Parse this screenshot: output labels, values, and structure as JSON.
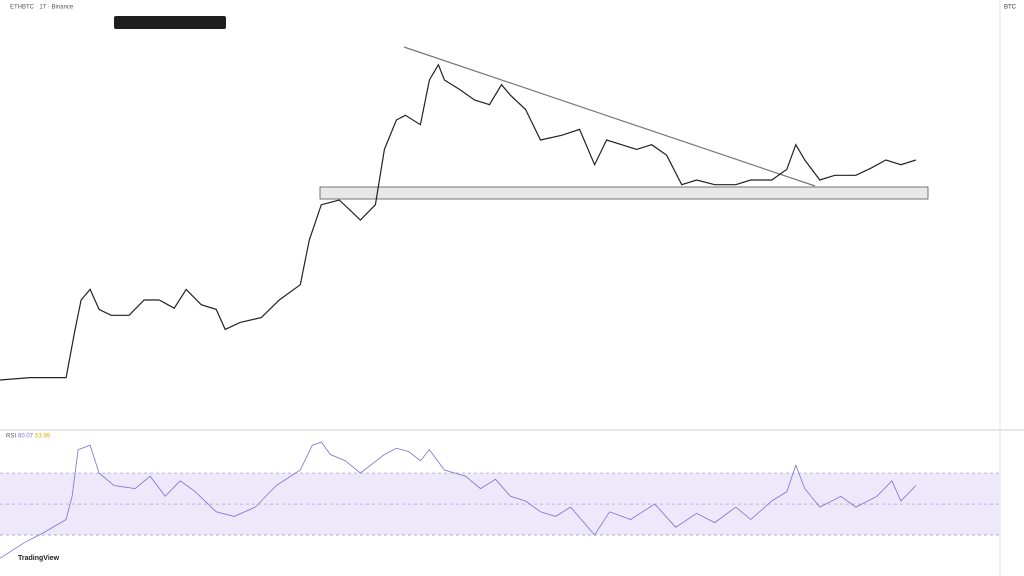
{
  "header": {
    "symbol": "ETHBTC · 1T · Binance",
    "currency": "BTC"
  },
  "chart_data": [
    {
      "type": "line",
      "color": "#222222",
      "ylim": [
        0.028,
        0.062
      ],
      "xlim": [
        0,
        333
      ],
      "x": [
        0,
        10,
        22,
        25,
        27,
        30,
        33,
        37,
        43,
        48,
        53,
        58,
        62,
        67,
        72,
        75,
        80,
        87,
        93,
        100,
        103,
        107,
        113,
        120,
        125,
        128,
        132,
        135,
        140,
        143,
        146,
        148,
        153,
        158,
        163,
        167,
        170,
        175,
        180,
        187,
        193,
        198,
        202,
        207,
        212,
        217,
        222,
        227,
        232,
        238,
        245,
        250,
        257,
        262,
        265,
        268,
        273,
        278,
        285,
        290,
        295,
        300,
        305
      ],
      "values": [
        0.0314,
        0.0316,
        0.0316,
        0.0357,
        0.0382,
        0.0391,
        0.0374,
        0.0369,
        0.0369,
        0.0382,
        0.0382,
        0.0375,
        0.0391,
        0.0378,
        0.0374,
        0.0357,
        0.0363,
        0.0367,
        0.0382,
        0.0395,
        0.0433,
        0.0463,
        0.0467,
        0.045,
        0.0463,
        0.051,
        0.0535,
        0.0539,
        0.0531,
        0.0569,
        0.0582,
        0.0569,
        0.0561,
        0.0552,
        0.0548,
        0.0565,
        0.0556,
        0.0544,
        0.0518,
        0.0522,
        0.0527,
        0.0497,
        0.0518,
        0.0514,
        0.051,
        0.0514,
        0.0505,
        0.048,
        0.0484,
        0.048,
        0.048,
        0.0484,
        0.0484,
        0.0493,
        0.0514,
        0.0501,
        0.0484,
        0.0488,
        0.0488,
        0.0494,
        0.0501,
        0.0497,
        0.0501
      ]
    },
    {
      "type": "line",
      "title": "RSI",
      "value_label": "60.07",
      "ma_label": "53.99",
      "color": "#7b6fd6",
      "ylim": [
        10,
        92
      ],
      "xlim": [
        0,
        333
      ],
      "levels": [
        70,
        50,
        30
      ],
      "x": [
        0,
        8,
        15,
        22,
        24,
        26,
        30,
        33,
        38,
        45,
        50,
        55,
        60,
        65,
        72,
        78,
        85,
        92,
        100,
        104,
        107,
        110,
        115,
        120,
        124,
        128,
        132,
        136,
        140,
        143,
        148,
        155,
        160,
        165,
        170,
        175,
        180,
        185,
        190,
        198,
        203,
        210,
        218,
        225,
        232,
        238,
        245,
        250,
        257,
        262,
        265,
        268,
        273,
        280,
        285,
        292,
        297,
        300,
        305
      ],
      "values": [
        15,
        25,
        32,
        40,
        55,
        85,
        88,
        70,
        62,
        60,
        68,
        55,
        65,
        58,
        45,
        42,
        48,
        62,
        72,
        88,
        90,
        82,
        78,
        70,
        76,
        82,
        86,
        84,
        78,
        85,
        72,
        68,
        60,
        66,
        55,
        52,
        45,
        42,
        48,
        30,
        45,
        40,
        50,
        35,
        44,
        38,
        48,
        40,
        52,
        58,
        75,
        60,
        48,
        55,
        48,
        55,
        65,
        52,
        62
      ]
    }
  ],
  "footer": {
    "brand": "TradingView"
  }
}
